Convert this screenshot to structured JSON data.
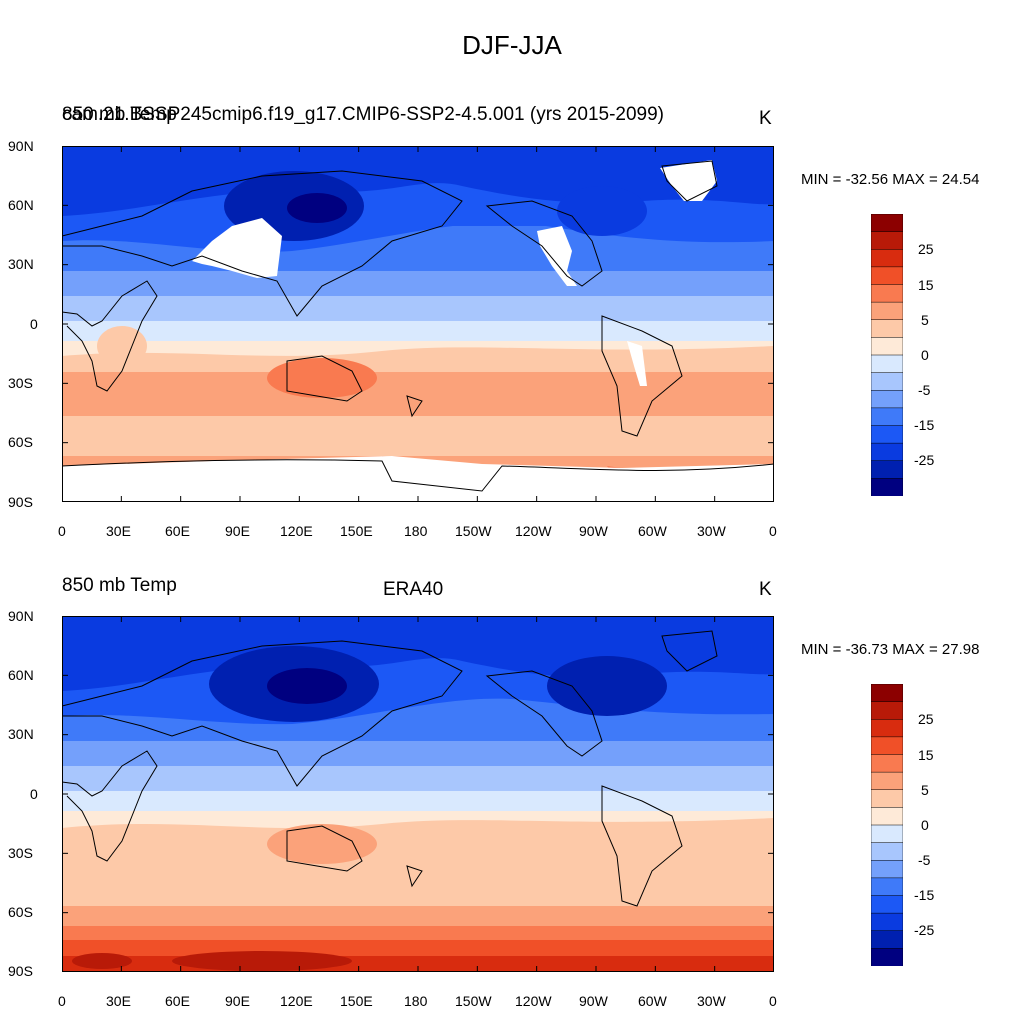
{
  "figure": {
    "title": "DJF-JJA"
  },
  "panels": [
    {
      "left_title_a": "850 mb Temp",
      "left_title_b": "cam.21.BSSP245cmip6.f19_g17.CMIP6-SSP2-4.5.001 (yrs 2015-2099)",
      "center_title": "",
      "units": "K",
      "min_max": "MIN = -32.56 MAX =  24.54",
      "stats": {
        "min": -32.56,
        "max": 24.54
      }
    },
    {
      "left_title_a": "850 mb Temp",
      "center_title": "ERA40",
      "units": "K",
      "min_max": "MIN = -36.73 MAX =  27.98",
      "stats": {
        "min": -36.73,
        "max": 27.98
      }
    }
  ],
  "axes": {
    "lat_labels": [
      "90N",
      "60N",
      "30N",
      "0",
      "30S",
      "60S",
      "90S"
    ],
    "lon_labels": [
      "0",
      "30E",
      "60E",
      "90E",
      "120E",
      "150E",
      "180",
      "150W",
      "120W",
      "90W",
      "60W",
      "30W",
      "0"
    ]
  },
  "colorbar": {
    "levels": [
      -30,
      -25,
      -20,
      -15,
      -10,
      -5,
      -2,
      0,
      2,
      5,
      10,
      15,
      20,
      25,
      30
    ],
    "tick_labels": [
      "25",
      "15",
      "5",
      "0",
      "-5",
      "-15",
      "-25"
    ],
    "colors": [
      "#000080",
      "#0020b0",
      "#0a3be0",
      "#1c58f5",
      "#3f7af9",
      "#74a0fb",
      "#a8c6fd",
      "#d9e9fe",
      "#feead8",
      "#fdc9a8",
      "#fba27a",
      "#f97a50",
      "#f05028",
      "#d82c0f",
      "#b81a08",
      "#8c0000"
    ]
  },
  "chart_data": [
    {
      "type": "heatmap",
      "title": "DJF-JJA",
      "subtitle": "850 mb Temp",
      "dataset": "cam.21.BSSP245cmip6.f19_g17.CMIP6-SSP2-4.5.001 (yrs 2015-2099)",
      "units": "K",
      "min": -32.56,
      "max": 24.54,
      "lat_range": [
        -90,
        90
      ],
      "lon_range": [
        0,
        360
      ],
      "contour_levels": [
        -30,
        -25,
        -20,
        -15,
        -10,
        -5,
        -2,
        0,
        2,
        5,
        10,
        15,
        20,
        25,
        30
      ],
      "missing_regions": [
        "Tibetan Plateau / Himalaya",
        "Rocky Mountains",
        "Andes",
        "Greenland",
        "Antarctica"
      ]
    },
    {
      "type": "heatmap",
      "title": "DJF-JJA",
      "subtitle": "850 mb Temp",
      "dataset": "ERA40",
      "units": "K",
      "min": -36.73,
      "max": 27.98,
      "lat_range": [
        -90,
        90
      ],
      "lon_range": [
        0,
        360
      ],
      "contour_levels": [
        -30,
        -25,
        -20,
        -15,
        -10,
        -5,
        -2,
        0,
        2,
        5,
        10,
        15,
        20,
        25,
        30
      ]
    }
  ]
}
